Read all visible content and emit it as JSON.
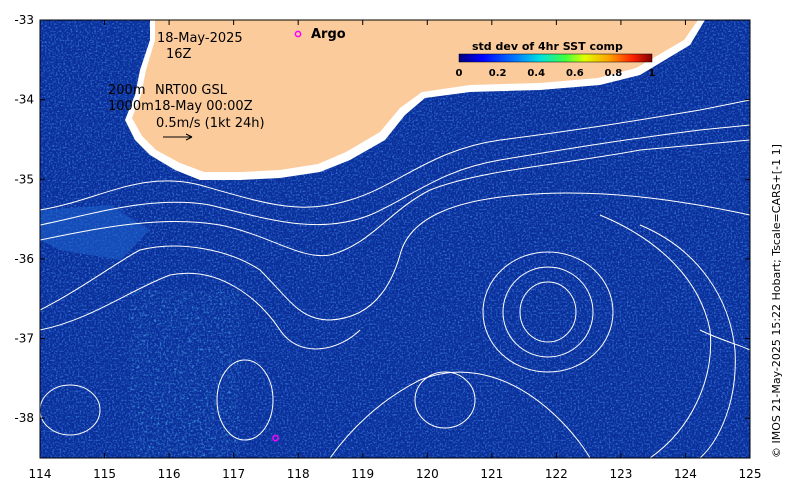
{
  "chart_data": {
    "type": "heatmap",
    "title": "std dev of 4hr SST comp",
    "x_ticks": [
      114,
      115,
      116,
      117,
      118,
      119,
      120,
      121,
      122,
      123,
      124,
      125
    ],
    "y_ticks": [
      -33,
      -34,
      -35,
      -36,
      -37,
      -38
    ],
    "xlim": [
      114,
      125
    ],
    "ylim": [
      -38.5,
      -33
    ],
    "colorbar": {
      "label": "std dev of 4hr SST comp",
      "min": 0,
      "max": 1,
      "ticks": [
        "0",
        "0.2",
        "0.4",
        "0.6",
        "0.8",
        "1"
      ],
      "colors": [
        "#00007f",
        "#0000ff",
        "#0080ff",
        "#00e0e0",
        "#40ff40",
        "#e0ff00",
        "#ffa000",
        "#ff2000",
        "#800000"
      ]
    },
    "annotations": {
      "date": "18-May-2025",
      "hour": "16Z",
      "depth_200": "200m",
      "depth_1000": "1000m",
      "product": "NRT00 GSL",
      "product_time": "18-May 00:00Z",
      "velocity_scale": "0.5m/s (1kt 24h)"
    },
    "legend": {
      "marker": "o",
      "label": "Argo",
      "color": "#ff00ff"
    },
    "argo_floats": [
      {
        "lon": 117.65,
        "lat": -38.25
      }
    ],
    "credit": "© IMOS 21-May-2025 15:22 Hobart; Tscale=CARS+[-1 1]",
    "colors": {
      "land": "#fbcb9c",
      "ocean_bg": "#0a2f9a",
      "contour": "#ffffff"
    }
  }
}
